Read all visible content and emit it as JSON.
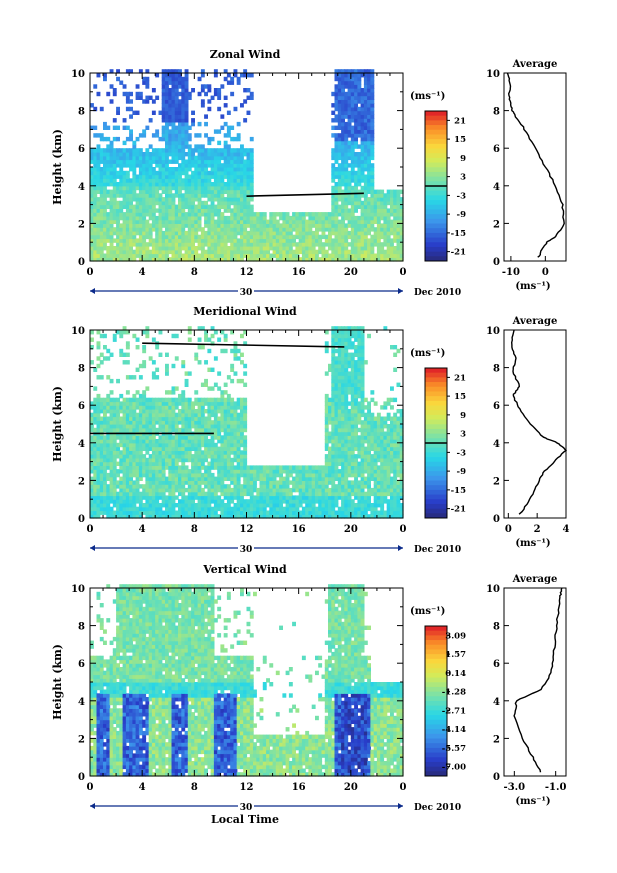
{
  "figure": {
    "xlabel_bottom": "Local Time",
    "date_label": "Dec 2010",
    "day_label": "30"
  },
  "chart_data": [
    {
      "type": "heatmap",
      "title": "Zonal Wind",
      "ylabel": "Height (km)",
      "ylim": [
        0,
        10
      ],
      "x_ticks": [
        "0",
        "4",
        "8",
        "12",
        "16",
        "20",
        "0"
      ],
      "y_ticks": [
        "0",
        "2",
        "4",
        "6",
        "8",
        "10"
      ],
      "colorbar": {
        "unit": "(ms⁻¹)",
        "labels": [
          "21",
          "15",
          "9",
          "3",
          "-3",
          "-9",
          "-15",
          "-21"
        ],
        "min": -24,
        "max": 24
      },
      "profile": {
        "title": "Average",
        "xlim": [
          -12,
          6
        ],
        "x_ticks": [
          "-10",
          "0"
        ],
        "x_tick_values": [
          -10,
          0
        ],
        "xlabel": "(ms⁻¹)",
        "y_ticks": [
          "0",
          "2",
          "4",
          "6",
          "8",
          "10"
        ],
        "points": [
          [
            -2,
            0.2
          ],
          [
            -1,
            0.6
          ],
          [
            0.5,
            1.0
          ],
          [
            3,
            1.3
          ],
          [
            5.5,
            2.0
          ],
          [
            5,
            3.0
          ],
          [
            3,
            4.0
          ],
          [
            0,
            5.0
          ],
          [
            -3,
            6.0
          ],
          [
            -6,
            7.0
          ],
          [
            -9,
            7.8
          ],
          [
            -10,
            8.2
          ],
          [
            -10.5,
            8.8
          ],
          [
            -10,
            9.4
          ],
          [
            -11,
            10
          ]
        ]
      }
    },
    {
      "type": "heatmap",
      "title": "Meridional Wind",
      "ylabel": "Height (km)",
      "ylim": [
        0,
        10
      ],
      "x_ticks": [
        "0",
        "4",
        "8",
        "12",
        "16",
        "20",
        "0"
      ],
      "y_ticks": [
        "0",
        "2",
        "4",
        "6",
        "8",
        "10"
      ],
      "colorbar": {
        "unit": "(ms⁻¹)",
        "labels": [
          "21",
          "15",
          "9",
          "3",
          "-3",
          "-9",
          "-15",
          "-21"
        ],
        "min": -24,
        "max": 24
      },
      "profile": {
        "title": "Average",
        "xlim": [
          -0.3,
          4
        ],
        "x_ticks": [
          "0",
          "2",
          "4"
        ],
        "x_tick_values": [
          0,
          2,
          4
        ],
        "xlabel": "(ms⁻¹)",
        "y_ticks": [
          "0",
          "2",
          "4",
          "6",
          "8",
          "10"
        ],
        "points": [
          [
            0.8,
            0.2
          ],
          [
            1.5,
            1.0
          ],
          [
            2.0,
            1.8
          ],
          [
            2.4,
            2.4
          ],
          [
            3.2,
            3.0
          ],
          [
            4.0,
            3.6
          ],
          [
            3.4,
            4.0
          ],
          [
            2.4,
            4.3
          ],
          [
            1.5,
            5.0
          ],
          [
            0.8,
            5.8
          ],
          [
            0.3,
            6.5
          ],
          [
            0.8,
            7.0
          ],
          [
            0.3,
            7.8
          ],
          [
            0.5,
            8.5
          ],
          [
            0.2,
            9.2
          ],
          [
            0.4,
            10
          ]
        ]
      }
    },
    {
      "type": "heatmap",
      "title": "Vertical Wind",
      "ylabel": "Height (km)",
      "ylim": [
        0,
        10
      ],
      "x_ticks": [
        "0",
        "4",
        "8",
        "12",
        "16",
        "20",
        "0"
      ],
      "y_ticks": [
        "0",
        "2",
        "4",
        "6",
        "8",
        "10"
      ],
      "colorbar": {
        "unit": "(ms⁻¹)",
        "labels": [
          "3.09",
          "1.57",
          "0.14",
          "-1.28",
          "-2.71",
          "-4.14",
          "-5.57",
          "-7.00"
        ],
        "min": -7.7,
        "max": 3.8
      },
      "profile": {
        "title": "Average",
        "xlim": [
          -3.5,
          -0.5
        ],
        "x_ticks": [
          "-3.0",
          "-1.0"
        ],
        "x_tick_values": [
          -3.0,
          -1.0
        ],
        "xlabel": "(ms⁻¹)",
        "y_ticks": [
          "0",
          "2",
          "4",
          "6",
          "8",
          "10"
        ],
        "points": [
          [
            -1.7,
            0.2
          ],
          [
            -2.1,
            1.0
          ],
          [
            -2.6,
            2.0
          ],
          [
            -3.0,
            3.2
          ],
          [
            -2.9,
            4.0
          ],
          [
            -1.7,
            4.6
          ],
          [
            -1.2,
            5.5
          ],
          [
            -1.1,
            6.5
          ],
          [
            -1.0,
            7.5
          ],
          [
            -0.9,
            8.5
          ],
          [
            -0.8,
            9.5
          ],
          [
            -0.7,
            10
          ]
        ]
      }
    }
  ]
}
